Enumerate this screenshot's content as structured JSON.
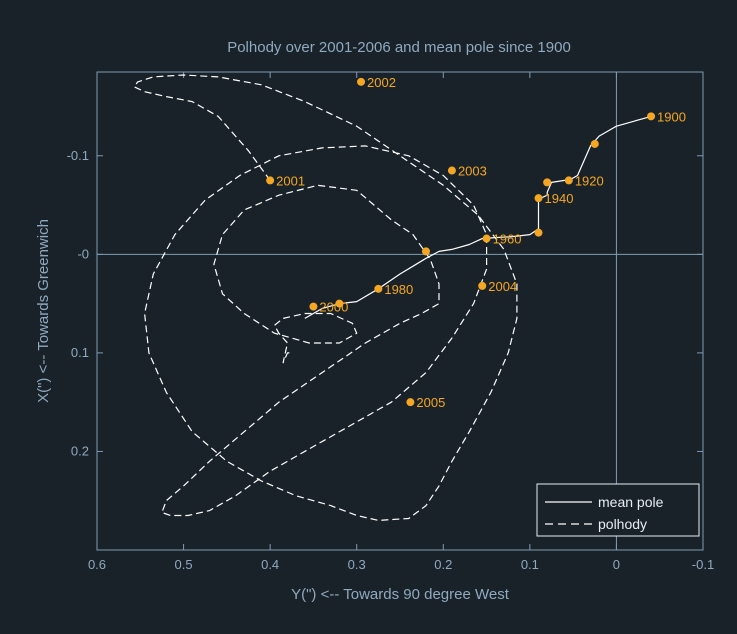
{
  "chart_data": {
    "type": "line",
    "title": "Polhody over 2001-2006 and mean pole since 1900",
    "xlabel": "Y(\") <-- Towards 90 degree West",
    "ylabel": "X(\") <-- Towards Greenwich",
    "xlim": [
      0.6,
      -0.1
    ],
    "ylim": [
      0.3,
      -0.185
    ],
    "x_ticks": [
      "0.6",
      "0.5",
      "0.4",
      "0.3",
      "0.2",
      "0.1",
      "0",
      "-0.1"
    ],
    "y_ticks": [
      "-0.1",
      "-0",
      "0.1",
      "0.2"
    ],
    "x_tick_values": [
      0.6,
      0.5,
      0.4,
      0.3,
      0.2,
      0.1,
      0,
      -0.1
    ],
    "y_tick_values": [
      -0.1,
      0,
      0.1,
      0.2
    ],
    "reference_lines": {
      "x": 0,
      "y": 0
    },
    "legend": {
      "position": "bottom-right",
      "entries": [
        "mean pole",
        "polhody"
      ]
    },
    "series": [
      {
        "name": "mean pole",
        "style": "solid",
        "color": "#ffffff",
        "x": [
          -0.04,
          -0.02,
          0.0,
          0.02,
          0.03,
          0.045,
          0.055,
          0.06,
          0.075,
          0.08,
          0.08,
          0.085,
          0.09,
          0.09,
          0.1,
          0.12,
          0.14,
          0.155,
          0.17,
          0.19,
          0.205,
          0.22,
          0.235,
          0.25,
          0.275,
          0.3,
          0.32,
          0.34,
          0.36
        ],
        "y": [
          -0.14,
          -0.135,
          -0.13,
          -0.12,
          -0.11,
          -0.08,
          -0.075,
          -0.075,
          -0.073,
          -0.063,
          -0.06,
          -0.058,
          -0.057,
          -0.026,
          -0.02,
          -0.018,
          -0.017,
          -0.016,
          -0.01,
          -0.005,
          -0.003,
          0.004,
          0.012,
          0.02,
          0.035,
          0.048,
          0.05,
          0.055,
          0.065
        ]
      },
      {
        "name": "polhody",
        "style": "dashed",
        "color": "#ffffff",
        "x": [
          0.4,
          0.425,
          0.44,
          0.46,
          0.49,
          0.52,
          0.545,
          0.557,
          0.553,
          0.535,
          0.5,
          0.46,
          0.41,
          0.36,
          0.3,
          0.25,
          0.2,
          0.16,
          0.13,
          0.115,
          0.115,
          0.125,
          0.145,
          0.17,
          0.19,
          0.205,
          0.22,
          0.24,
          0.275,
          0.3,
          0.33,
          0.37,
          0.41,
          0.45,
          0.49,
          0.52,
          0.54,
          0.545,
          0.535,
          0.51,
          0.475,
          0.435,
          0.39,
          0.34,
          0.29,
          0.24,
          0.2,
          0.165,
          0.15,
          0.15,
          0.165,
          0.19,
          0.22,
          0.26,
          0.3,
          0.35,
          0.4,
          0.44,
          0.47,
          0.495,
          0.515,
          0.525,
          0.52,
          0.5,
          0.47,
          0.43,
          0.39,
          0.34,
          0.29,
          0.25,
          0.225,
          0.205,
          0.205,
          0.215,
          0.235,
          0.26,
          0.3,
          0.345,
          0.39,
          0.43,
          0.455,
          0.465,
          0.455,
          0.43,
          0.395,
          0.355,
          0.32,
          0.3,
          0.305,
          0.33,
          0.36,
          0.385,
          0.395,
          0.39,
          0.38,
          0.385,
          0.38,
          0.375
        ],
        "y": [
          -0.075,
          -0.105,
          -0.12,
          -0.14,
          -0.155,
          -0.16,
          -0.165,
          -0.17,
          -0.175,
          -0.18,
          -0.182,
          -0.18,
          -0.172,
          -0.155,
          -0.13,
          -0.1,
          -0.07,
          -0.04,
          -0.005,
          0.03,
          0.065,
          0.1,
          0.14,
          0.18,
          0.21,
          0.235,
          0.255,
          0.268,
          0.27,
          0.265,
          0.255,
          0.245,
          0.23,
          0.21,
          0.18,
          0.14,
          0.1,
          0.06,
          0.02,
          -0.02,
          -0.055,
          -0.08,
          -0.1,
          -0.108,
          -0.11,
          -0.1,
          -0.08,
          -0.05,
          -0.02,
          0.015,
          0.05,
          0.085,
          0.12,
          0.15,
          0.17,
          0.195,
          0.22,
          0.245,
          0.26,
          0.265,
          0.265,
          0.262,
          0.25,
          0.235,
          0.21,
          0.18,
          0.15,
          0.12,
          0.09,
          0.07,
          0.06,
          0.05,
          0.03,
          0.005,
          -0.02,
          -0.035,
          -0.065,
          -0.07,
          -0.06,
          -0.045,
          -0.02,
          0.01,
          0.04,
          0.06,
          0.08,
          0.09,
          0.09,
          0.08,
          0.07,
          0.06,
          0.06,
          0.065,
          0.072,
          0.08,
          0.09,
          0.11,
          0.1,
          0.1
        ]
      }
    ],
    "points": [
      {
        "label": "1900",
        "x": -0.04,
        "y": -0.14
      },
      {
        "label": "1920",
        "x": 0.055,
        "y": -0.075
      },
      {
        "label": "1940",
        "x": 0.09,
        "y": -0.057
      },
      {
        "label": "1960",
        "x": 0.15,
        "y": -0.016
      },
      {
        "label": "1980",
        "x": 0.275,
        "y": 0.035
      },
      {
        "label": "2000",
        "x": 0.35,
        "y": 0.053
      },
      {
        "label": "2001",
        "x": 0.4,
        "y": -0.075
      },
      {
        "label": "2002",
        "x": 0.295,
        "y": -0.175
      },
      {
        "label": "2003",
        "x": 0.19,
        "y": -0.085
      },
      {
        "label": "2004",
        "x": 0.155,
        "y": 0.032
      },
      {
        "label": "2005",
        "x": 0.238,
        "y": 0.15
      },
      {
        "label": "",
        "x": 0.025,
        "y": -0.112
      },
      {
        "label": "",
        "x": 0.08,
        "y": -0.073
      },
      {
        "label": "",
        "x": 0.09,
        "y": -0.022
      },
      {
        "label": "",
        "x": 0.22,
        "y": -0.003
      },
      {
        "label": "",
        "x": 0.32,
        "y": 0.05
      }
    ],
    "point_color": "#f5a623"
  }
}
